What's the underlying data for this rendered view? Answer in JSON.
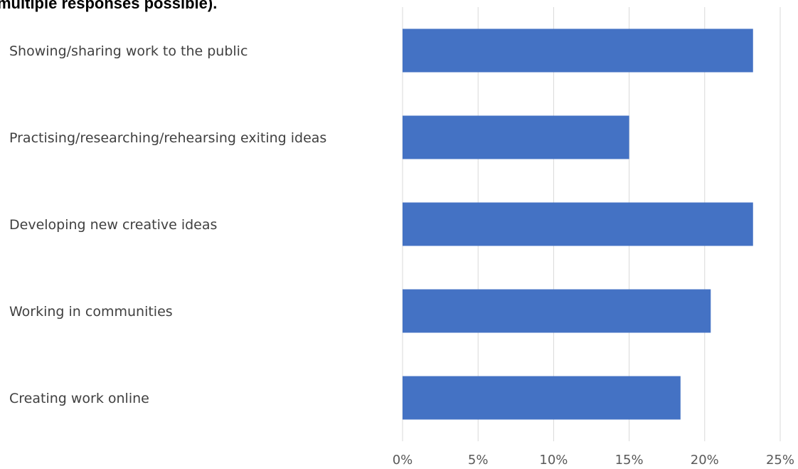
{
  "heading": "multiple responses possible).",
  "chart_data": {
    "type": "bar",
    "orientation": "horizontal",
    "title": "",
    "categories": [
      "Showing/sharing work to the public",
      "Practising/researching/rehearsing exiting ideas",
      "Developing new creative ideas",
      "Working in communities",
      "Creating work online"
    ],
    "values": [
      23.2,
      15.0,
      23.2,
      20.4,
      18.4
    ],
    "xlim": [
      0,
      25
    ],
    "xticks": [
      "0%",
      "5%",
      "10%",
      "15%",
      "20%",
      "25%"
    ],
    "xlabel": "",
    "ylabel": "",
    "grid": true,
    "legend": "none",
    "bar_color": "#4472C4",
    "grid_color": "#D9D9D9"
  }
}
